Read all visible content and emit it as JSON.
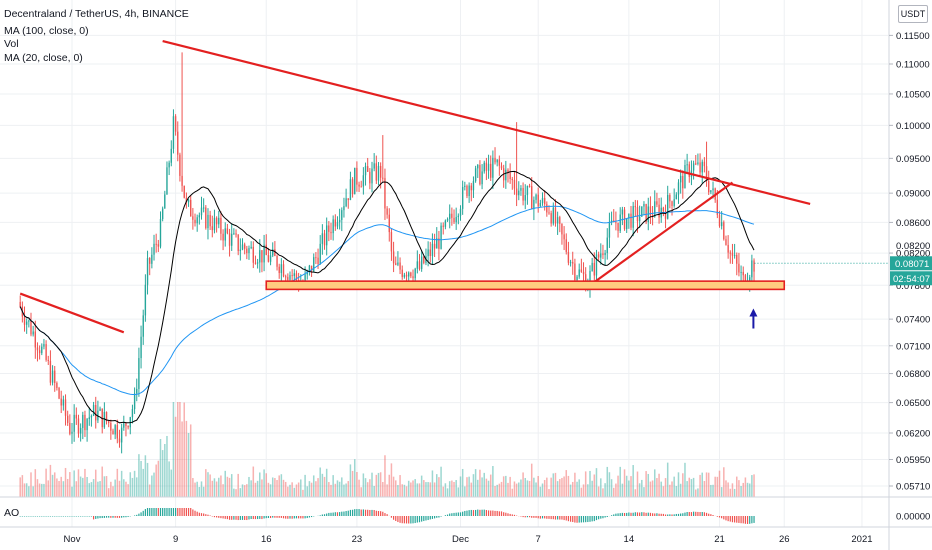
{
  "header": {
    "symbol_title": "Decentraland / TetherUS, 4h, BINANCE",
    "indicator_1": "MA (100, close, 0)",
    "indicator_2": "Vol",
    "indicator_3": "MA (20, close, 0)",
    "currency_button": "USDT",
    "oscillator_label": "AO"
  },
  "price_tags": {
    "last_price": "0.08071",
    "countdown": "02:54:07",
    "hidden_price": "0.08200"
  },
  "colors": {
    "up": "#26a69a",
    "down": "#ef5350",
    "trendline": "#e32020",
    "ma100": "#2196f3",
    "ma20": "#000000",
    "support_fill": "#ffcc80",
    "arrow": "#1a1aa8"
  },
  "chart_data": {
    "type": "candlestick",
    "y_axis": {
      "ticks": [
        "0.11500",
        "0.11000",
        "0.10500",
        "0.10000",
        "0.09500",
        "0.09000",
        "0.08600",
        "0.08200",
        "0.07800",
        "0.07400",
        "0.07100",
        "0.06800",
        "0.06500",
        "0.06200",
        "0.05950",
        "0.05710"
      ],
      "range": [
        0.0557,
        0.1185
      ],
      "scale": "log"
    },
    "x_axis": {
      "ticks": [
        "Nov",
        "9",
        "16",
        "23",
        "Dec",
        "7",
        "14",
        "21",
        "26",
        "2021"
      ]
    },
    "oscillator_axis": {
      "ticks": [
        "0.00000"
      ]
    },
    "price_series_anchors": [
      {
        "t": "Oct 28",
        "price": 0.076
      },
      {
        "t": "Oct 30",
        "price": 0.07
      },
      {
        "t": "Nov 1",
        "price": 0.0625
      },
      {
        "t": "Nov 3",
        "price": 0.064
      },
      {
        "t": "Nov 5",
        "price": 0.062
      },
      {
        "t": "Nov 6",
        "price": 0.065
      },
      {
        "t": "Nov 7",
        "price": 0.08
      },
      {
        "t": "Nov 8",
        "price": 0.085
      },
      {
        "t": "Nov 9",
        "price": 0.1
      },
      {
        "t": "Nov 10",
        "price": 0.088
      },
      {
        "t": "Nov 12",
        "price": 0.086
      },
      {
        "t": "Nov 14",
        "price": 0.083
      },
      {
        "t": "Nov 17",
        "price": 0.081
      },
      {
        "t": "Nov 19",
        "price": 0.078
      },
      {
        "t": "Nov 21",
        "price": 0.085
      },
      {
        "t": "Nov 23",
        "price": 0.092
      },
      {
        "t": "Nov 25",
        "price": 0.093
      },
      {
        "t": "Nov 26",
        "price": 0.08
      },
      {
        "t": "Nov 28",
        "price": 0.08
      },
      {
        "t": "Nov 30",
        "price": 0.085
      },
      {
        "t": "Dec 2",
        "price": 0.092
      },
      {
        "t": "Dec 4",
        "price": 0.094
      },
      {
        "t": "Dec 6",
        "price": 0.09
      },
      {
        "t": "Dec 8",
        "price": 0.088
      },
      {
        "t": "Dec 10",
        "price": 0.08
      },
      {
        "t": "Dec 11",
        "price": 0.0785
      },
      {
        "t": "Dec 13",
        "price": 0.086
      },
      {
        "t": "Dec 15",
        "price": 0.087
      },
      {
        "t": "Dec 17",
        "price": 0.088
      },
      {
        "t": "Dec 19",
        "price": 0.094
      },
      {
        "t": "Dec 20",
        "price": 0.093
      },
      {
        "t": "Dec 21",
        "price": 0.088
      },
      {
        "t": "Dec 22",
        "price": 0.082
      },
      {
        "t": "Dec 23",
        "price": 0.0785
      },
      {
        "t": "Dec 23 (last)",
        "price": 0.08071
      }
    ],
    "drawings": {
      "descending_resistance": {
        "from": {
          "t": "Nov 8",
          "price": 0.114
        },
        "to": {
          "t": "Dec 28",
          "price": 0.0885
        }
      },
      "early_resistance": {
        "from": {
          "t": "Oct 28",
          "price": 0.077
        },
        "to": {
          "t": "Nov 5",
          "price": 0.0725
        }
      },
      "rising_support": {
        "from": {
          "t": "Dec 11",
          "price": 0.078
        },
        "to": {
          "t": "Dec 22",
          "price": 0.0915
        }
      },
      "support_zone": {
        "from_t": "Nov 16",
        "to_t": "Dec 26",
        "low": 0.0775,
        "high": 0.0785
      },
      "up_arrow": {
        "t": "Dec 23",
        "price": 0.075
      }
    }
  }
}
